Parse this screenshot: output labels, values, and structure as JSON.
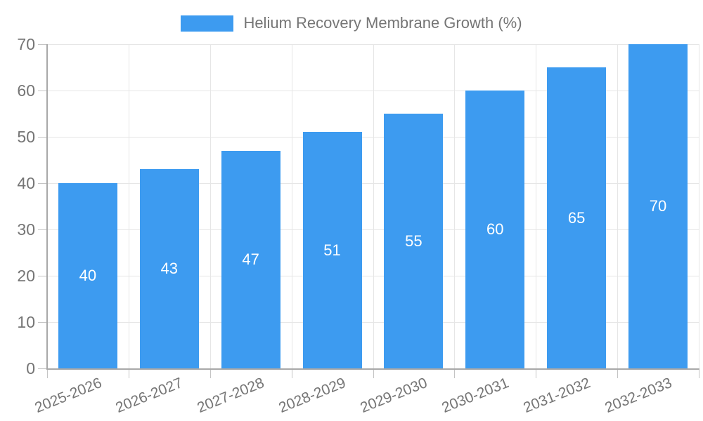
{
  "legend": {
    "label": "Helium Recovery Membrane Growth (%)"
  },
  "chart_data": {
    "type": "bar",
    "title": "Helium Recovery Membrane Growth (%)",
    "categories": [
      "2025-2026",
      "2026-2027",
      "2027-2028",
      "2028-2029",
      "2029-2030",
      "2030-2031",
      "2031-2032",
      "2032-2033"
    ],
    "values": [
      40,
      43,
      47,
      51,
      55,
      60,
      65,
      70
    ],
    "xlabel": "",
    "ylabel": "",
    "ylim": [
      0,
      70
    ],
    "yticks": [
      0,
      10,
      20,
      30,
      40,
      50,
      60,
      70
    ],
    "grid": true,
    "legend_position": "top",
    "bar_color": "#3D9BF0",
    "value_label_color": "#FFFFFF",
    "axis_text_color": "#757575",
    "grid_color": "#E6E6E6",
    "axis_line_color": "#A8A8A8",
    "x_label_rotation_deg": -22
  }
}
